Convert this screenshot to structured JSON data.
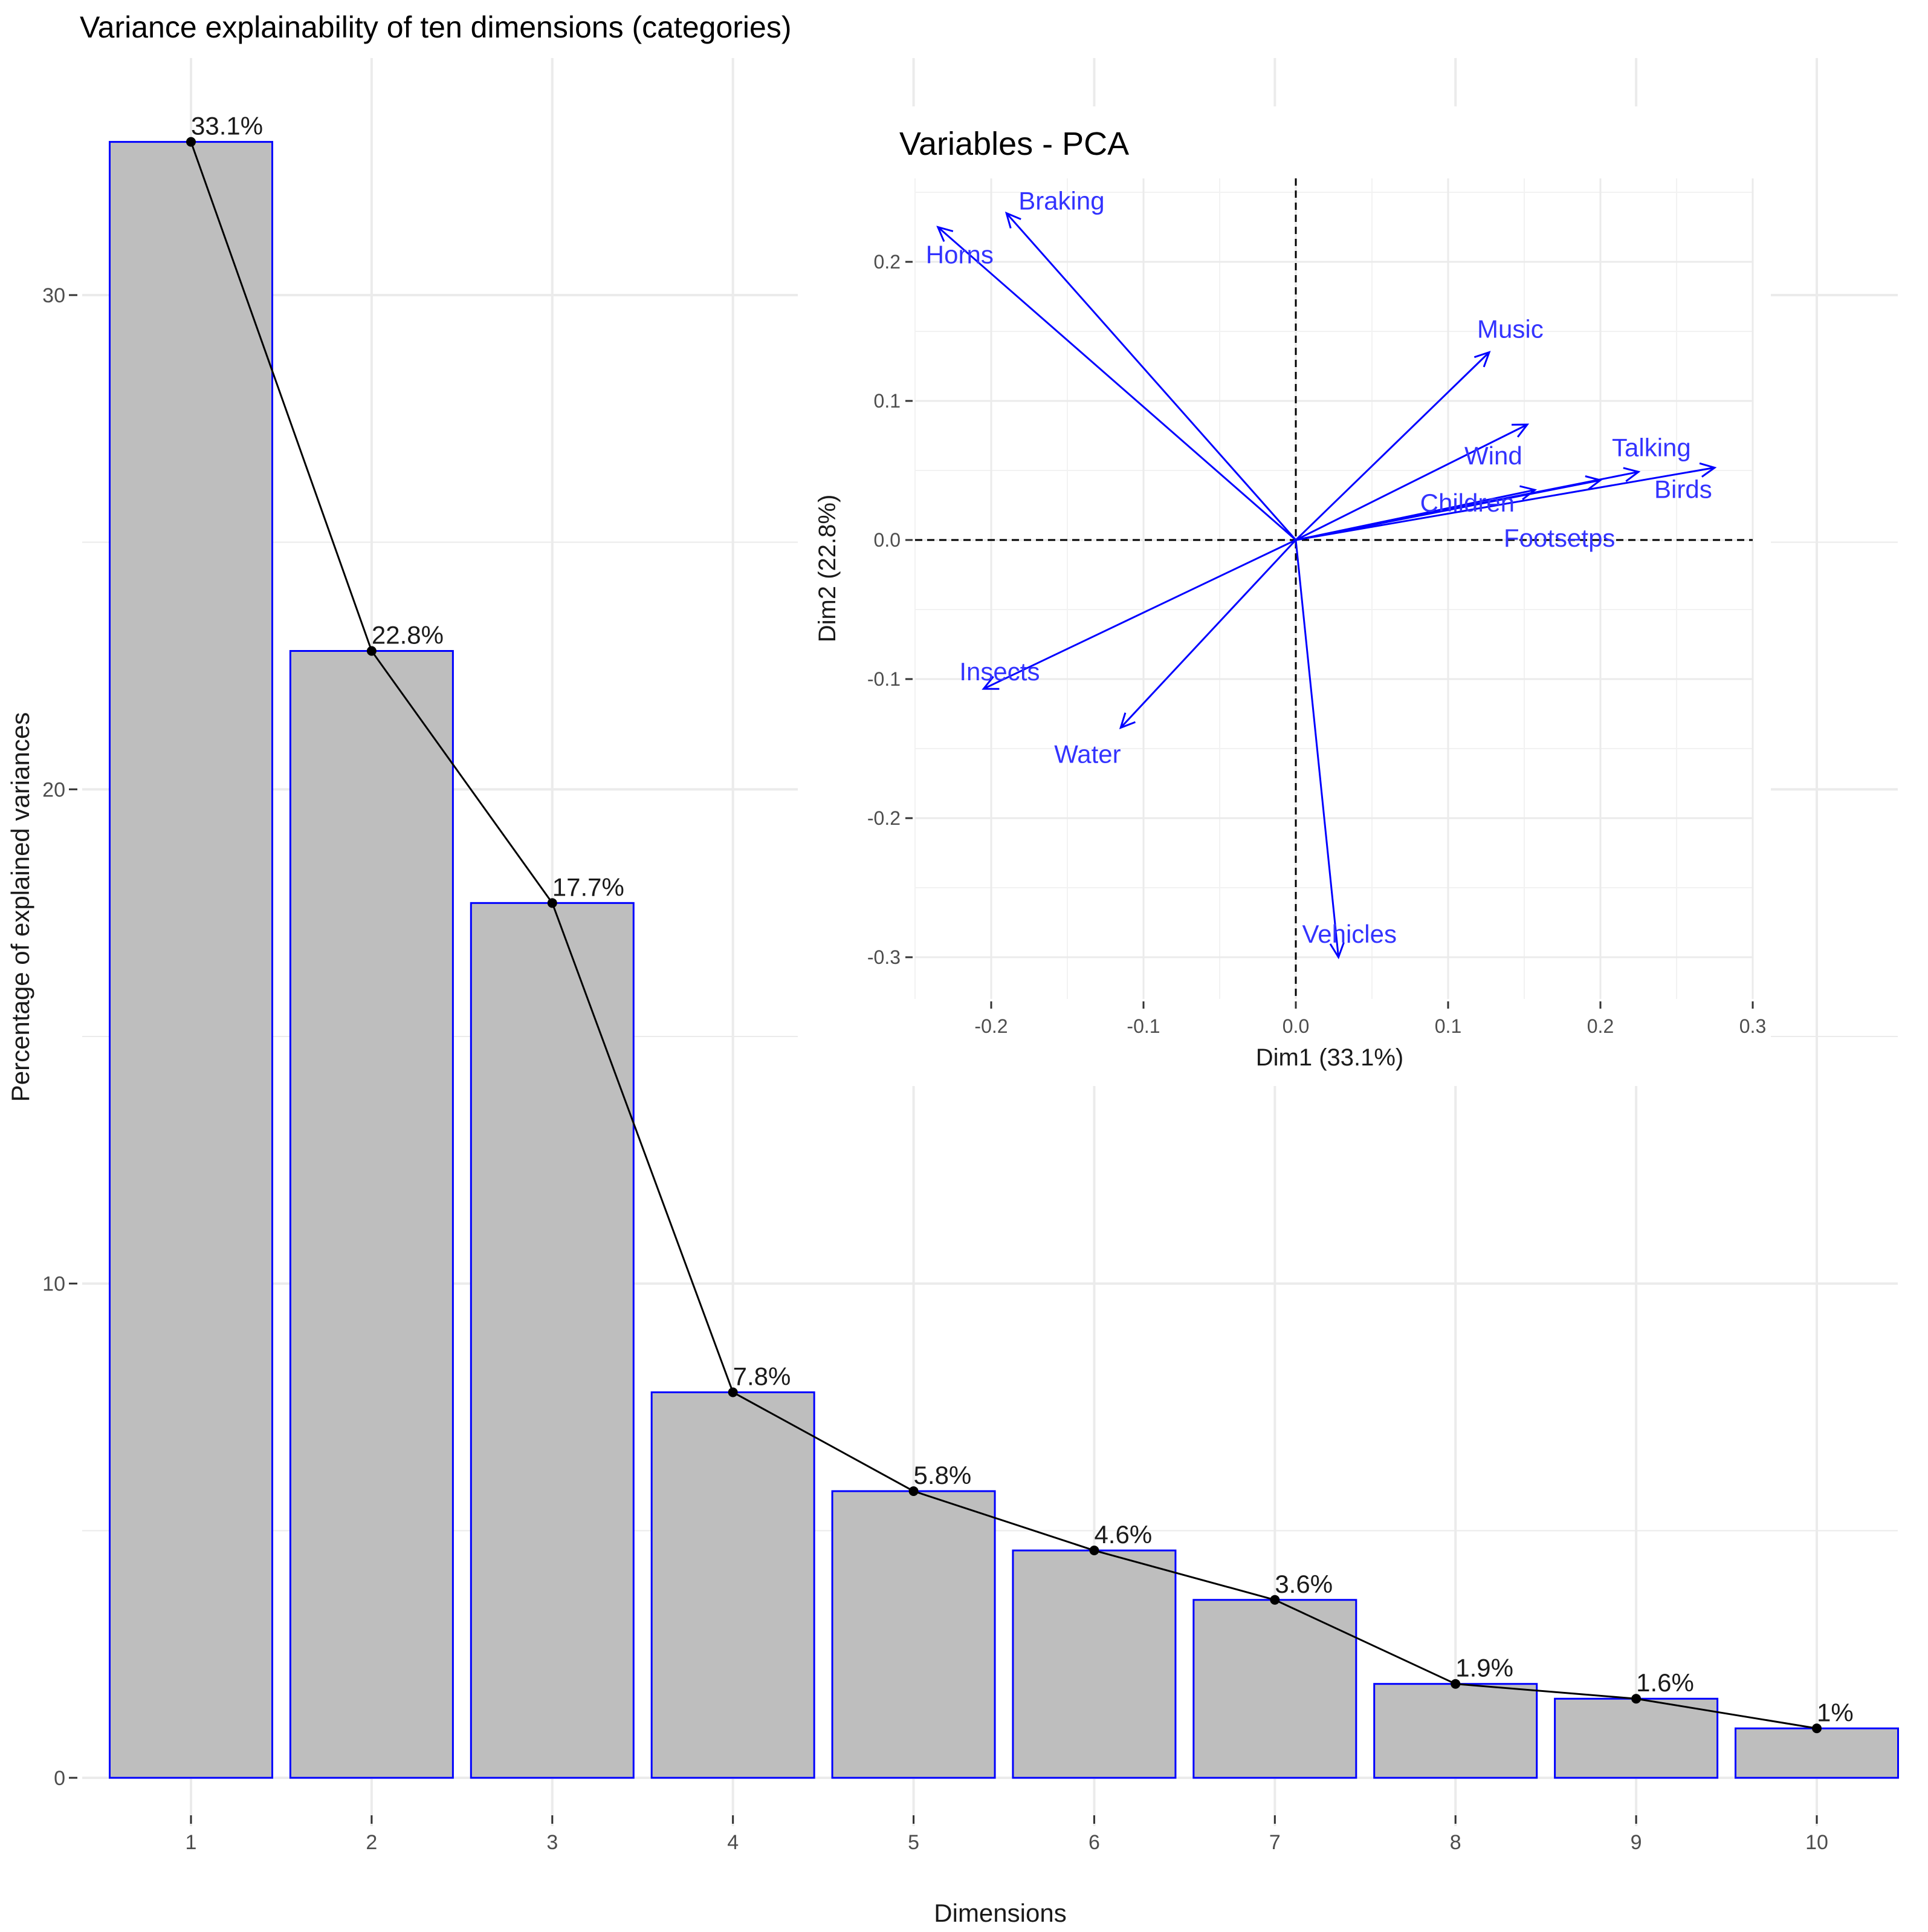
{
  "chart_data": [
    {
      "type": "bar",
      "title": "Variance explainability of ten dimensions (categories)",
      "xlabel": "Dimensions",
      "ylabel": "Percentage of explained variances",
      "categories": [
        "1",
        "2",
        "3",
        "4",
        "5",
        "6",
        "7",
        "8",
        "9",
        "10"
      ],
      "values": [
        33.1,
        22.8,
        17.7,
        7.8,
        5.8,
        4.6,
        3.6,
        1.9,
        1.6,
        1.0
      ],
      "value_labels": [
        "33.1%",
        "22.8%",
        "17.7%",
        "7.8%",
        "5.8%",
        "4.6%",
        "3.6%",
        "1.9%",
        "1.6%",
        "1%"
      ],
      "yticks": [
        0,
        10,
        20,
        30
      ],
      "ylim": [
        0,
        34.5
      ],
      "grid": true,
      "overlay_line": true,
      "colors": {
        "bar_fill": "#bebebe",
        "bar_stroke": "#0000ff",
        "line": "#000000",
        "grid": "#ebebeb"
      }
    },
    {
      "type": "scatter",
      "subtype": "pca-variables-arrows",
      "title": "Variables - PCA",
      "xlabel": "Dim1 (33.1%)",
      "ylabel": "Dim2 (22.8%)",
      "xlim": [
        -0.25,
        0.3
      ],
      "ylim": [
        -0.33,
        0.26
      ],
      "xticks": [
        -0.2,
        -0.1,
        0.0,
        0.1,
        0.2,
        0.3
      ],
      "xtick_labels": [
        "-0.2",
        "-0.1",
        "0.0",
        "0.1",
        "0.2",
        "0.3"
      ],
      "yticks": [
        -0.3,
        -0.2,
        -0.1,
        0.0,
        0.1,
        0.2
      ],
      "ytick_labels": [
        "-0.3",
        "-0.2",
        "-0.1",
        "0.0",
        "0.1",
        "0.2"
      ],
      "grid": true,
      "colors": {
        "arrow": "#0000ff",
        "label": "#3333ff"
      },
      "variables": [
        {
          "name": "Braking",
          "x": -0.19,
          "y": 0.235
        },
        {
          "name": "Horns",
          "x": -0.235,
          "y": 0.225
        },
        {
          "name": "Music",
          "x": 0.127,
          "y": 0.135
        },
        {
          "name": "Wind",
          "x": 0.152,
          "y": 0.083
        },
        {
          "name": "Talking",
          "x": 0.225,
          "y": 0.049
        },
        {
          "name": "Birds",
          "x": 0.275,
          "y": 0.052
        },
        {
          "name": "Children",
          "x": 0.157,
          "y": 0.036
        },
        {
          "name": "Footsetps",
          "x": 0.2,
          "y": 0.043
        },
        {
          "name": "Insects",
          "x": -0.205,
          "y": -0.107
        },
        {
          "name": "Water",
          "x": -0.115,
          "y": -0.135
        },
        {
          "name": "Vehicles",
          "x": 0.028,
          "y": -0.3
        }
      ]
    }
  ]
}
